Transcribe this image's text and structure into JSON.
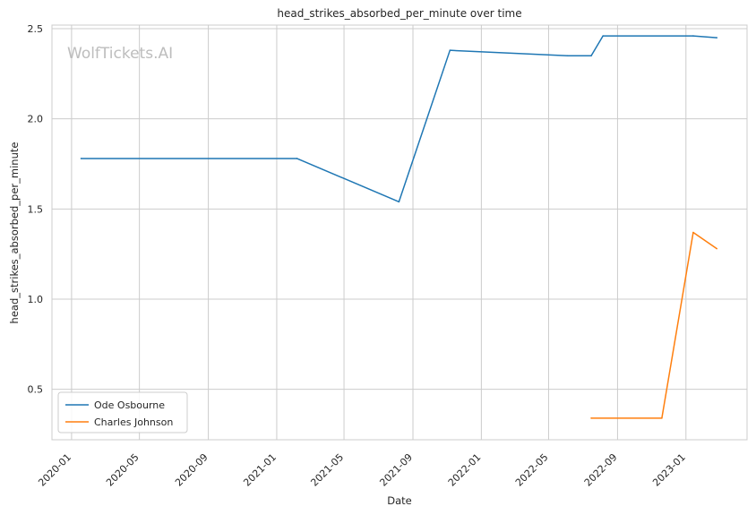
{
  "chart_data": {
    "type": "line",
    "title": "head_strikes_absorbed_per_minute over time",
    "xlabel": "Date",
    "ylabel": "head_strikes_absorbed_per_minute",
    "watermark": "WolfTickets.AI",
    "xlim": [
      "2019-11-27",
      "2023-04-20"
    ],
    "ylim": [
      0.22,
      2.52
    ],
    "x_ticks": [
      "2020-01",
      "2020-05",
      "2020-09",
      "2021-01",
      "2021-05",
      "2021-09",
      "2022-01",
      "2022-05",
      "2022-09",
      "2023-01"
    ],
    "y_ticks": [
      0.5,
      1.0,
      1.5,
      2.0,
      2.5
    ],
    "y_tick_labels": [
      "0.5",
      "1.0",
      "1.5",
      "2.0",
      "2.5"
    ],
    "grid": true,
    "legend_position": "lower-left",
    "series": [
      {
        "name": "Ode Osbourne",
        "color": "#1f77b4",
        "points": [
          {
            "x": "2020-01-18",
            "y": 1.78
          },
          {
            "x": "2021-02-06",
            "y": 1.78
          },
          {
            "x": "2021-08-07",
            "y": 1.54
          },
          {
            "x": "2021-11-06",
            "y": 2.38
          },
          {
            "x": "2022-06-04",
            "y": 2.35
          },
          {
            "x": "2022-07-16",
            "y": 2.35
          },
          {
            "x": "2022-08-06",
            "y": 2.46
          },
          {
            "x": "2023-01-14",
            "y": 2.46
          },
          {
            "x": "2023-02-25",
            "y": 2.45
          }
        ]
      },
      {
        "name": "Charles Johnson",
        "color": "#ff7f0e",
        "points": [
          {
            "x": "2022-07-16",
            "y": 0.34
          },
          {
            "x": "2022-11-19",
            "y": 0.34
          },
          {
            "x": "2023-01-14",
            "y": 1.37
          },
          {
            "x": "2023-02-25",
            "y": 1.28
          }
        ]
      }
    ]
  }
}
